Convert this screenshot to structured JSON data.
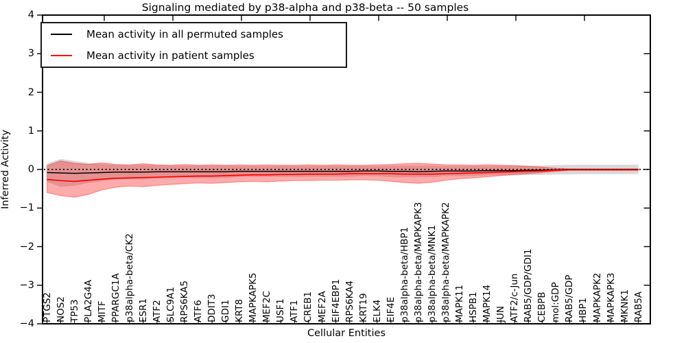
{
  "title": "Signaling mediated by p38-alpha and p38-beta -- 50 samples",
  "colors": {
    "background": "#ffffff",
    "frame": "#000000",
    "permuted_line": "#000000",
    "patient_line": "#ff0000",
    "patient_band_fill": "rgba(255,0,0,0.33)",
    "patient_band_edge": "rgba(255,0,0,0.35)",
    "permuted_band_fill": "rgba(125,125,125,0.30)"
  },
  "chart_data": {
    "type": "line",
    "title": "Signaling mediated by p38-alpha and p38-beta -- 50 samples",
    "xlabel": "Cellular Entities",
    "ylabel": "Inferred Activity",
    "ylim": [
      -4,
      4
    ],
    "yticks": [
      4,
      3,
      2,
      1,
      0,
      -1,
      -2,
      -3,
      -4
    ],
    "grid": false,
    "legend_position": "upper left",
    "legend_entries": [
      {
        "label": "Mean activity in all permuted samples",
        "color": "#000000"
      },
      {
        "label": "Mean activity in patient samples",
        "color": "#ff0000"
      }
    ],
    "reference_line": {
      "y": 0,
      "style": "dotted",
      "color": "#000000"
    },
    "categories": [
      "PTGS2",
      "NOS2",
      "TP53",
      "PLA2G4A",
      "MITF",
      "PPARGC1A",
      "p38alpha-beta/CK2",
      "ESR1",
      "ATF2",
      "SLC9A1",
      "RPS6KA5",
      "ATF6",
      "DDIT3",
      "GDI1",
      "KRT8",
      "MAPKAPK5",
      "MEF2C",
      "USF1",
      "ATF1",
      "CREB1",
      "MEF2A",
      "EIF4EBP1",
      "RPS6KA4",
      "KRT19",
      "ELK4",
      "EIF4E",
      "p38alpha-beta/HBP1",
      "p38alpha-beta/MAPKAPK3",
      "p38alpha-beta/MNK1",
      "p38alpha-beta/MAPKAPK2",
      "MAPK11",
      "HSPB1",
      "MAPK14",
      "JUN",
      "ATF2/c-Jun",
      "RAB5/GDP/GDI1",
      "CEBPB",
      "mol:GDP",
      "RAB5/GDP",
      "HBP1",
      "MAPKAPK2",
      "MAPKAPK3",
      "MKNK1",
      "RAB5A"
    ],
    "series": [
      {
        "name": "Mean activity in all permuted samples",
        "color": "#000000",
        "style": "solid",
        "values": [
          -0.08,
          -0.09,
          -0.1,
          -0.09,
          -0.08,
          -0.07,
          -0.07,
          -0.07,
          -0.06,
          -0.06,
          -0.06,
          -0.06,
          -0.06,
          -0.06,
          -0.05,
          -0.05,
          -0.05,
          -0.05,
          -0.05,
          -0.05,
          -0.05,
          -0.05,
          -0.05,
          -0.04,
          -0.04,
          -0.05,
          -0.05,
          -0.06,
          -0.05,
          -0.04,
          -0.04,
          -0.04,
          -0.03,
          -0.03,
          -0.03,
          -0.02,
          -0.02,
          -0.01,
          0.0,
          0.0,
          0.0,
          0.0,
          0.0,
          0.0
        ]
      },
      {
        "name": "Mean activity in patient samples",
        "color": "#ff0000",
        "style": "solid",
        "values": [
          -0.26,
          -0.29,
          -0.31,
          -0.28,
          -0.25,
          -0.23,
          -0.22,
          -0.21,
          -0.2,
          -0.19,
          -0.18,
          -0.17,
          -0.17,
          -0.16,
          -0.15,
          -0.14,
          -0.14,
          -0.13,
          -0.13,
          -0.12,
          -0.12,
          -0.12,
          -0.11,
          -0.11,
          -0.11,
          -0.11,
          -0.12,
          -0.12,
          -0.12,
          -0.11,
          -0.1,
          -0.09,
          -0.08,
          -0.07,
          -0.06,
          -0.05,
          -0.04,
          -0.02,
          -0.01,
          -0.01,
          -0.01,
          -0.01,
          -0.01,
          -0.01
        ]
      }
    ],
    "bands": [
      {
        "name": "permuted samples range",
        "fill": "rgba(125,125,125,0.30)",
        "upper": [
          0.16,
          0.27,
          0.22,
          0.17,
          0.14,
          0.12,
          0.11,
          0.12,
          0.11,
          0.1,
          0.1,
          0.1,
          0.1,
          0.1,
          0.09,
          0.09,
          0.09,
          0.09,
          0.09,
          0.09,
          0.09,
          0.09,
          0.09,
          0.09,
          0.09,
          0.1,
          0.1,
          0.1,
          0.1,
          0.09,
          0.09,
          0.09,
          0.09,
          0.09,
          0.1,
          0.1,
          0.1,
          0.11,
          0.12,
          0.12,
          0.12,
          0.12,
          0.12,
          0.12
        ],
        "lower": [
          -0.32,
          -0.45,
          -0.42,
          -0.35,
          -0.3,
          -0.26,
          -0.25,
          -0.26,
          -0.23,
          -0.22,
          -0.22,
          -0.22,
          -0.22,
          -0.22,
          -0.19,
          -0.19,
          -0.19,
          -0.19,
          -0.19,
          -0.19,
          -0.19,
          -0.19,
          -0.19,
          -0.17,
          -0.17,
          -0.2,
          -0.2,
          -0.2,
          -0.2,
          -0.17,
          -0.17,
          -0.17,
          -0.15,
          -0.15,
          -0.16,
          -0.14,
          -0.14,
          -0.13,
          -0.13,
          -0.12,
          -0.12,
          -0.12,
          -0.12,
          -0.12
        ]
      },
      {
        "name": "patient samples range",
        "fill": "rgba(255,0,0,0.33)",
        "edge": "rgba(255,0,0,0.35)",
        "upper": [
          0.1,
          0.22,
          0.16,
          0.13,
          0.17,
          0.13,
          0.12,
          0.15,
          0.12,
          0.11,
          0.13,
          0.11,
          0.12,
          0.11,
          0.12,
          0.11,
          0.12,
          0.11,
          0.11,
          0.12,
          0.11,
          0.12,
          0.11,
          0.11,
          0.12,
          0.13,
          0.15,
          0.16,
          0.14,
          0.12,
          0.12,
          0.11,
          0.12,
          0.11,
          0.1,
          0.08,
          0.06,
          0.03,
          0.01,
          0.01,
          0.01,
          0.01,
          0.01,
          0.01
        ],
        "lower": [
          -0.6,
          -0.68,
          -0.72,
          -0.65,
          -0.53,
          -0.46,
          -0.43,
          -0.45,
          -0.41,
          -0.39,
          -0.37,
          -0.35,
          -0.36,
          -0.34,
          -0.32,
          -0.31,
          -0.32,
          -0.3,
          -0.29,
          -0.29,
          -0.28,
          -0.28,
          -0.27,
          -0.27,
          -0.28,
          -0.31,
          -0.34,
          -0.36,
          -0.33,
          -0.28,
          -0.24,
          -0.22,
          -0.19,
          -0.16,
          -0.13,
          -0.11,
          -0.08,
          -0.05,
          -0.02,
          -0.02,
          -0.02,
          -0.02,
          -0.02,
          -0.02
        ]
      }
    ]
  }
}
